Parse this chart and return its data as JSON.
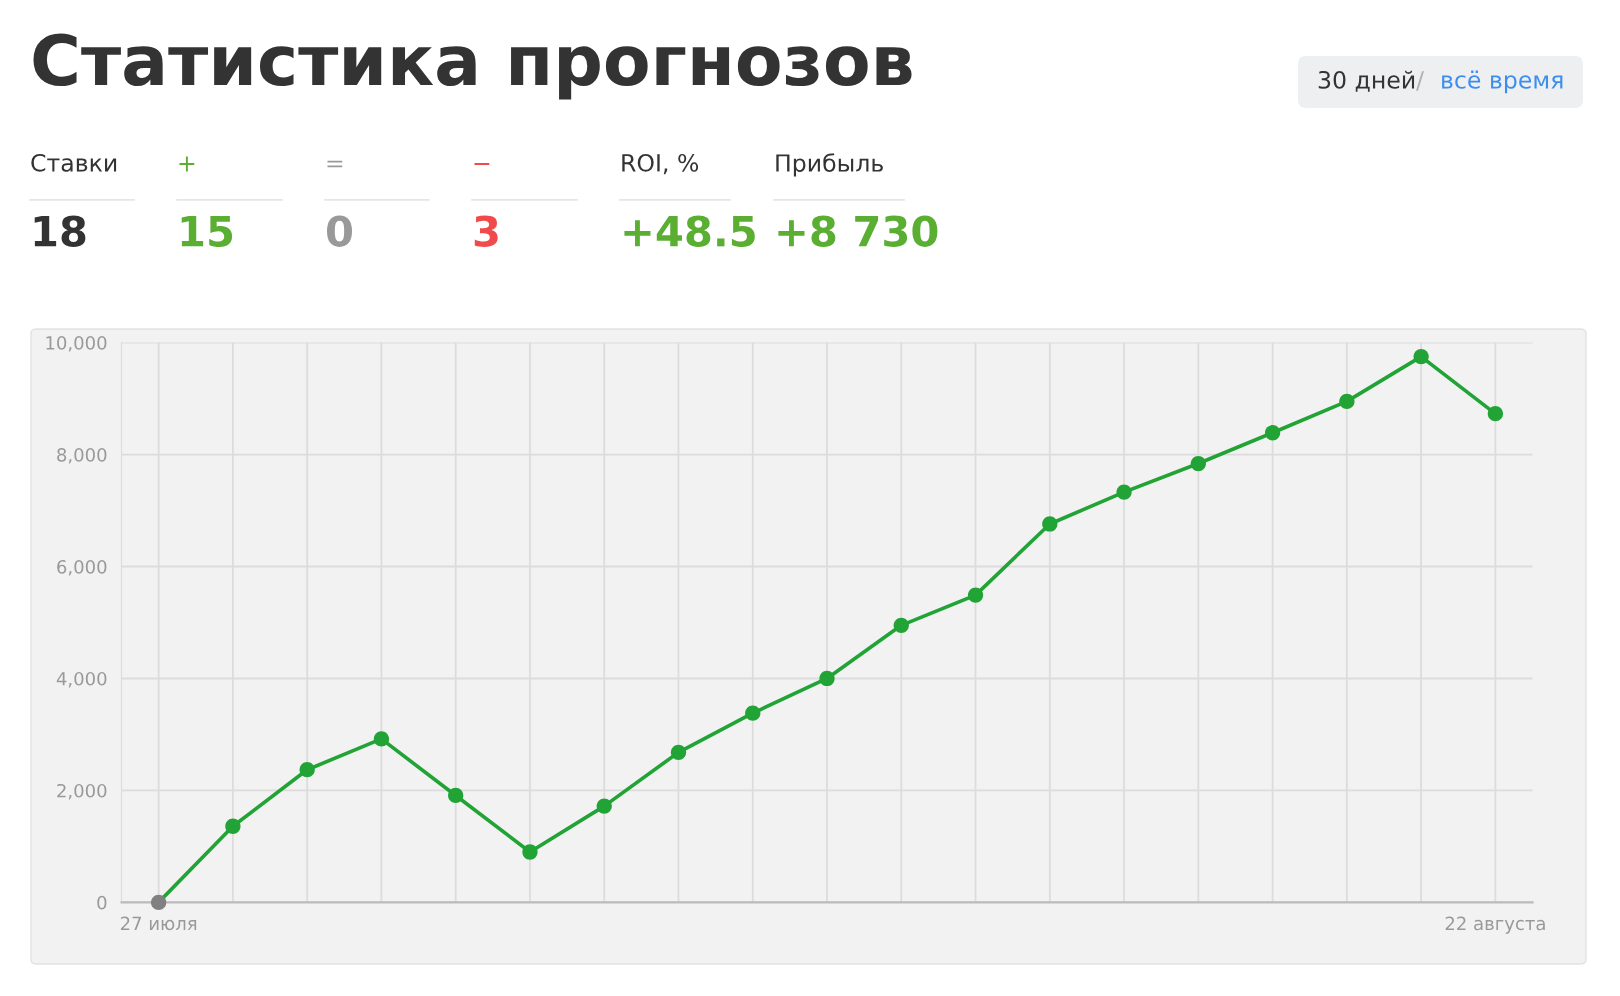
{
  "chart_data": [
    {
      "type": "other",
      "title": "Статистика прогнозов",
      "annotations": [
        "30 дней",
        "/",
        "всё время",
        "Ставки",
        "+",
        "=",
        "−",
        "ROI, %",
        "Прибыль",
        "18",
        "15",
        "0",
        "3",
        "+48.5",
        "+8 730"
      ]
    },
    {
      "type": "line",
      "categories": [
        "27 июля",
        null,
        null,
        null,
        null,
        null,
        null,
        null,
        null,
        null,
        null,
        null,
        null,
        null,
        null,
        null,
        null,
        null,
        "22 августа"
      ],
      "series": [
        {
          "color": "#21a336",
          "colors": [
            "#808080",
            "#21a336",
            "#21a336",
            "#21a336",
            "#21a336",
            "#21a336",
            "#21a336",
            "#21a336",
            "#21a336",
            "#21a336",
            "#21a336",
            "#21a336",
            "#21a336",
            "#21a336",
            "#21a336",
            "#21a336",
            "#21a336",
            "#21a336",
            "#21a336"
          ],
          "values": [
            0,
            1360,
            2370,
            2920,
            1910,
            900,
            1720,
            2680,
            3380,
            4000,
            4950,
            5490,
            6760,
            7330,
            7840,
            8390,
            8950,
            9750,
            8730
          ]
        }
      ],
      "ylim": [
        0,
        10000
      ],
      "yticks": [
        0,
        {
          "value": 2000,
          "label": "2,000"
        },
        {
          "value": 4000,
          "label": "4,000"
        },
        {
          "value": 6000,
          "label": "6,000"
        },
        {
          "value": 8000,
          "label": "8,000"
        },
        {
          "value": 10000,
          "label": "10,000"
        }
      ],
      "grid": true,
      "marker": "circle",
      "line_style": "solid",
      "legend": false
    }
  ]
}
